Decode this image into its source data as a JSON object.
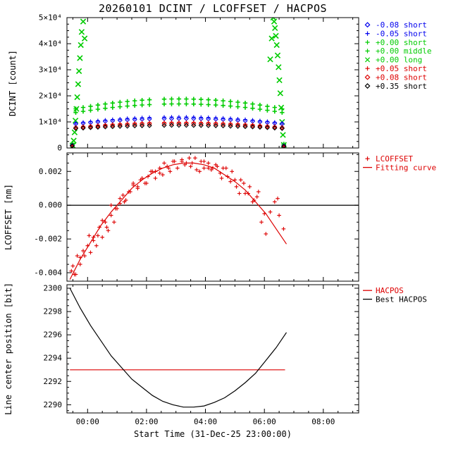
{
  "title": "20260101 DCINT / LCOFFSET / HACPOS",
  "xaxis": {
    "label": "Start Time (31-Dec-25 23:00:00)",
    "range": [
      -0.7,
      9.2
    ],
    "ticks": [
      0,
      2,
      4,
      6,
      8
    ],
    "tick_labels": [
      "00:00",
      "02:00",
      "04:00",
      "06:00",
      "08:00"
    ],
    "minor_step": 0.5
  },
  "palette": {
    "blue": "#0000ee",
    "green": "#00cc00",
    "red": "#dd0000",
    "black": "#000000",
    "frame": "#000000",
    "background": "#ffffff"
  },
  "chart_data": [
    {
      "name": "dcint",
      "type": "scatter",
      "ylabel": "DCINT [count]",
      "ylim": [
        0,
        50000
      ],
      "yticks": [
        0,
        10000,
        20000,
        30000,
        40000,
        50000
      ],
      "ytick_labels": [
        "0",
        "1×10⁴",
        "2×10⁴",
        "3×10⁴",
        "4×10⁴",
        "5×10⁴"
      ],
      "y_minor_step": 2500,
      "x_shared": [
        -0.52,
        -0.4,
        -0.15,
        0.1,
        0.35,
        0.6,
        0.85,
        1.1,
        1.35,
        1.6,
        1.85,
        2.1,
        2.6,
        2.85,
        3.1,
        3.35,
        3.6,
        3.85,
        4.1,
        4.35,
        4.6,
        4.85,
        5.1,
        5.35,
        5.6,
        5.85,
        6.1,
        6.35,
        6.6,
        6.66
      ],
      "legend": [
        {
          "symbol": "diamond",
          "color": "blue",
          "label": "-0.08 short"
        },
        {
          "symbol": "plus",
          "color": "blue",
          "label": "-0.05 short"
        },
        {
          "symbol": "plus",
          "color": "green",
          "label": "+0.00 short"
        },
        {
          "symbol": "plus",
          "color": "green",
          "label": "+0.00 middle"
        },
        {
          "symbol": "x",
          "color": "green",
          "label": "+0.00 long"
        },
        {
          "symbol": "plus",
          "color": "red",
          "label": "+0.05 short"
        },
        {
          "symbol": "diamond",
          "color": "red",
          "label": "+0.08 short"
        },
        {
          "symbol": "diamond",
          "color": "black",
          "label": "+0.35 short"
        }
      ],
      "series": [
        {
          "name": "+0.00 long",
          "marker": "x",
          "color": "green",
          "x": [
            -0.5,
            -0.47,
            -0.44,
            -0.41,
            -0.38,
            -0.35,
            -0.32,
            -0.29,
            -0.26,
            -0.23,
            -0.2,
            -0.15,
            -0.1,
            6.2,
            6.25,
            6.3,
            6.33,
            6.36,
            6.39,
            6.42,
            6.45,
            6.48,
            6.51,
            6.54,
            6.57,
            6.6,
            6.63,
            6.66
          ],
          "y": [
            900,
            2800,
            6000,
            10500,
            15000,
            19500,
            24500,
            29500,
            34500,
            39500,
            44500,
            48500,
            42000,
            34000,
            42000,
            50000,
            48500,
            46000,
            43000,
            39500,
            35500,
            31000,
            26000,
            21000,
            15500,
            10000,
            5000,
            1200
          ]
        },
        {
          "name": "+0.00 middle",
          "marker": "plus",
          "color": "green",
          "y": [
            1800,
            15000,
            15530,
            16010,
            16460,
            16860,
            17230,
            17560,
            17850,
            18100,
            18320,
            18490,
            18720,
            18780,
            18800,
            18780,
            18720,
            18630,
            18490,
            18320,
            18100,
            17850,
            17560,
            17230,
            16860,
            16460,
            16010,
            15530,
            15000,
            1500
          ]
        },
        {
          "name": "+0.00 short",
          "marker": "plus",
          "color": "green",
          "y": [
            1500,
            13590,
            14050,
            14470,
            14860,
            15210,
            15530,
            15820,
            16070,
            16290,
            16480,
            16630,
            16830,
            16880,
            16900,
            16880,
            16830,
            16750,
            16630,
            16480,
            16290,
            16070,
            15820,
            15530,
            15210,
            14860,
            14470,
            14050,
            13590,
            1200
          ]
        },
        {
          "name": "-0.05 short",
          "marker": "plus",
          "color": "blue",
          "y": [
            1100,
            9570,
            9890,
            10190,
            10460,
            10710,
            10940,
            11140,
            11320,
            11470,
            11600,
            11710,
            11850,
            11890,
            11900,
            11890,
            11850,
            11790,
            11710,
            11600,
            11470,
            11320,
            11140,
            10940,
            10710,
            10460,
            10190,
            9890,
            9570,
            900
          ]
        },
        {
          "name": "-0.08 short",
          "marker": "diamond",
          "color": "blue",
          "y": [
            1000,
            9220,
            9500,
            9770,
            10010,
            10240,
            10440,
            10620,
            10780,
            10920,
            11030,
            11130,
            11260,
            11290,
            11300,
            11290,
            11260,
            11200,
            11130,
            11030,
            10920,
            10780,
            10620,
            10440,
            10240,
            10010,
            9770,
            9500,
            9220,
            850
          ]
        },
        {
          "name": "+0.05 short",
          "marker": "plus",
          "color": "red",
          "y": [
            900,
            8060,
            8320,
            8550,
            8770,
            8960,
            9140,
            9300,
            9440,
            9560,
            9670,
            9750,
            9860,
            9890,
            9900,
            9890,
            9860,
            9820,
            9750,
            9670,
            9560,
            9440,
            9300,
            9140,
            8960,
            8770,
            8550,
            8320,
            8060,
            700
          ]
        },
        {
          "name": "+0.08 short",
          "marker": "diamond",
          "color": "red",
          "y": [
            850,
            7750,
            7970,
            8190,
            8380,
            8560,
            8720,
            8860,
            8990,
            9100,
            9190,
            9270,
            9370,
            9390,
            9400,
            9390,
            9370,
            9320,
            9270,
            9190,
            9100,
            8990,
            8860,
            8720,
            8560,
            8380,
            8190,
            7970,
            7750,
            650
          ]
        },
        {
          "name": "+0.35 short",
          "marker": "diamond",
          "color": "black",
          "y": [
            800,
            7480,
            7640,
            7800,
            7940,
            8080,
            8190,
            8300,
            8390,
            8480,
            8540,
            8600,
            8680,
            8690,
            8700,
            8690,
            8680,
            8640,
            8600,
            8540,
            8480,
            8390,
            8300,
            8190,
            8080,
            7940,
            7800,
            7640,
            7480,
            600
          ]
        }
      ]
    },
    {
      "name": "lcoffset",
      "type": "scatter",
      "ylabel": "LCOFFSET [nm]",
      "ylim": [
        -0.0045,
        0.0031
      ],
      "yticks": [
        -0.004,
        -0.002,
        0.0,
        0.002
      ],
      "ytick_labels": [
        "-0.004",
        "-0.002",
        "0.000",
        "0.002"
      ],
      "y_minor_step": 0.0005,
      "hlines": [
        {
          "y": 0.0,
          "color": "black"
        }
      ],
      "legend": [
        {
          "symbol": "plus",
          "color": "red",
          "label": "LCOFFSET"
        },
        {
          "symbol": "line",
          "color": "red",
          "label": "Fitting curve"
        }
      ],
      "series": [
        {
          "name": "LCOFFSET",
          "marker": "plus",
          "color": "red",
          "x": [
            -0.55,
            -0.4,
            -0.25,
            -0.1,
            0.05,
            0.2,
            0.35,
            0.5,
            0.65,
            0.8,
            0.95,
            1.1,
            1.25,
            1.4,
            1.55,
            1.7,
            1.85,
            2.0,
            2.15,
            2.3,
            2.45,
            2.6,
            2.75,
            2.9,
            3.05,
            3.2,
            3.35,
            3.5,
            3.65,
            3.8,
            3.95,
            4.1,
            4.25,
            4.4,
            4.55,
            4.7,
            4.85,
            5.0,
            5.15,
            5.3,
            5.45,
            5.6,
            5.75,
            5.9,
            6.05,
            6.2,
            6.35,
            6.5,
            6.65,
            -0.5,
            -0.45,
            -0.35,
            -0.25,
            -0.15,
            0.0,
            0.1,
            0.2,
            0.3,
            0.4,
            0.5,
            0.6,
            0.7,
            0.8,
            0.9,
            1.0,
            1.1,
            1.2,
            1.3,
            1.45,
            1.55,
            1.7,
            1.8,
            1.95,
            2.05,
            2.2,
            2.3,
            2.45,
            2.55,
            2.7,
            2.8,
            2.95,
            3.05,
            3.2,
            3.3,
            3.45,
            3.55,
            3.7,
            3.85,
            3.95,
            4.1,
            4.2,
            4.35,
            4.5,
            4.6,
            4.75,
            4.9,
            5.05,
            5.2,
            5.35,
            5.5,
            5.65,
            5.8,
            6.0,
            6.45
          ],
          "y": [
            -0.0039,
            -0.0041,
            -0.0031,
            -0.003,
            -0.0018,
            -0.0019,
            -0.0018,
            -0.0009,
            -0.0013,
            0.0,
            -0.0002,
            0.0004,
            0.0002,
            0.0008,
            0.0013,
            0.0011,
            0.0016,
            0.0013,
            0.002,
            0.002,
            0.0019,
            0.0025,
            0.0022,
            0.0026,
            0.0022,
            0.0026,
            0.0025,
            0.0023,
            0.0028,
            0.002,
            0.0026,
            0.0022,
            0.0022,
            0.0023,
            0.0016,
            0.0022,
            0.0014,
            0.0015,
            0.0007,
            0.0013,
            0.0007,
            0.0002,
            0.0005,
            -0.001,
            -0.0017,
            -0.0004,
            0.0002,
            -0.0006,
            -0.0014,
            -0.0036,
            -0.0041,
            -0.003,
            -0.0035,
            -0.0027,
            -0.0024,
            -0.0028,
            -0.0021,
            -0.0024,
            -0.0013,
            -0.0019,
            -0.001,
            -0.0015,
            -0.0006,
            -0.001,
            -0.0002,
            0.0001,
            0.0006,
            0.0003,
            0.0008,
            0.0012,
            0.001,
            0.0015,
            0.0013,
            0.0017,
            0.002,
            0.0016,
            0.0022,
            0.0018,
            0.0023,
            0.002,
            0.0026,
            0.0022,
            0.0027,
            0.0024,
            0.0028,
            0.0025,
            0.0021,
            0.0026,
            0.0022,
            0.0025,
            0.0021,
            0.0024,
            0.0019,
            0.0022,
            0.0017,
            0.002,
            0.0011,
            0.0015,
            0.0007,
            0.0011,
            0.0003,
            0.0008,
            -0.0005,
            0.0004
          ]
        },
        {
          "name": "Fitting curve",
          "marker": "line",
          "color": "red",
          "x": [
            -0.6,
            -0.25,
            0.1,
            0.45,
            0.8,
            1.15,
            1.5,
            1.85,
            2.2,
            2.55,
            2.9,
            3.25,
            3.6,
            3.95,
            4.3,
            4.65,
            5.0,
            5.35,
            5.7,
            6.05,
            6.4,
            6.75
          ],
          "y": [
            -0.0044,
            -0.0032,
            -0.0022,
            -0.0012,
            -0.0004,
            0.0003,
            0.001,
            0.0015,
            0.0019,
            0.0022,
            0.0024,
            0.0025,
            0.0025,
            0.0024,
            0.0022,
            0.0018,
            0.0014,
            0.0009,
            0.0002,
            -0.0005,
            -0.0014,
            -0.0023
          ]
        }
      ]
    },
    {
      "name": "hacpos",
      "type": "line",
      "ylabel": "Line center position [bit]",
      "ylim": [
        2289.3,
        2300.3
      ],
      "yticks": [
        2290,
        2292,
        2294,
        2296,
        2298,
        2300
      ],
      "ytick_labels": [
        "2290",
        "2292",
        "2294",
        "2296",
        "2298",
        "2300"
      ],
      "y_minor_step": 0.5,
      "legend": [
        {
          "symbol": "line",
          "color": "red",
          "label": "HACPOS"
        },
        {
          "symbol": "line",
          "color": "black",
          "label": "Best HACPOS"
        }
      ],
      "series": [
        {
          "name": "HACPOS",
          "marker": "line",
          "color": "red",
          "x": [
            -0.6,
            6.7
          ],
          "y": [
            2293,
            2293
          ]
        },
        {
          "name": "Best HACPOS",
          "marker": "line",
          "color": "black",
          "x": [
            -0.6,
            -0.25,
            0.1,
            0.45,
            0.8,
            1.15,
            1.5,
            1.85,
            2.2,
            2.55,
            2.9,
            3.25,
            3.6,
            3.95,
            4.3,
            4.65,
            5.0,
            5.35,
            5.7,
            6.05,
            6.4,
            6.75
          ],
          "y": [
            2300.0,
            2298.3,
            2296.8,
            2295.5,
            2294.2,
            2293.2,
            2292.2,
            2291.5,
            2290.8,
            2290.3,
            2290.0,
            2289.8,
            2289.8,
            2289.9,
            2290.2,
            2290.6,
            2291.2,
            2291.9,
            2292.7,
            2293.8,
            2294.9,
            2296.2
          ]
        }
      ]
    }
  ]
}
